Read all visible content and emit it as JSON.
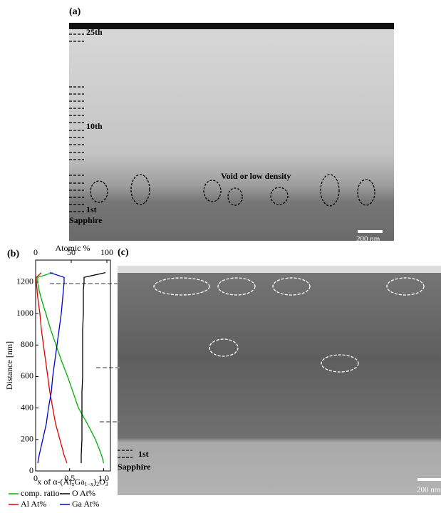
{
  "panel_a": {
    "label": "(a)",
    "layer_top": "25th",
    "layer_mid": "10th",
    "annotation": "Void or low density",
    "layer_bottom": "1st",
    "substrate": "Sapphire",
    "scale_bar": "200 nm"
  },
  "panel_c": {
    "label": "(c)",
    "layer_bottom": "1st",
    "substrate": "Sapphire",
    "scale_bar": "200 nm"
  },
  "chart_data": {
    "type": "line",
    "panel_label": "(b)",
    "xlabel_parts": [
      "x of α-(Al",
      "x",
      "Ga",
      "1−x",
      ")",
      "2",
      "O",
      "3"
    ],
    "x2label": "Atomic %",
    "ylabel": "Distance [nm]",
    "y": [
      50,
      100,
      200,
      300,
      400,
      500,
      600,
      700,
      800,
      900,
      1000,
      1100,
      1150,
      1200,
      1230,
      1260
    ],
    "series": [
      {
        "name": "comp. ratio",
        "color": "#00b000",
        "axis": "x",
        "values": [
          1.0,
          0.97,
          0.88,
          0.76,
          0.63,
          0.55,
          0.47,
          0.38,
          0.3,
          0.22,
          0.15,
          0.08,
          0.05,
          0.03,
          0.03,
          0.25
        ]
      },
      {
        "name": "O At%",
        "color": "#000000",
        "axis": "x2",
        "values": [
          64,
          64,
          65,
          65,
          65,
          65,
          66,
          66,
          66,
          66,
          67,
          67,
          67,
          68,
          68,
          98
        ]
      },
      {
        "name": "Al At%",
        "color": "#e00000",
        "axis": "x2",
        "values": [
          44,
          40,
          34,
          28,
          24,
          20,
          17,
          14,
          11,
          8,
          6,
          3,
          2,
          1,
          1,
          8
        ]
      },
      {
        "name": "Ga At%",
        "color": "#0000d0",
        "axis": "x2",
        "values": [
          3,
          5,
          10,
          15,
          18,
          22,
          24,
          27,
          30,
          33,
          36,
          38,
          39,
          40,
          40,
          20
        ]
      }
    ],
    "xlim": [
      0,
      1.1
    ],
    "xticks": [
      0,
      0.5,
      {
        "value": 1,
        "label": "1.0"
      }
    ],
    "x2lim": [
      0,
      105
    ],
    "x2ticks": [
      0,
      50,
      100
    ],
    "ylim": [
      0,
      1340
    ],
    "yticks": [
      0,
      200,
      400,
      600,
      800,
      1000,
      1200
    ]
  }
}
